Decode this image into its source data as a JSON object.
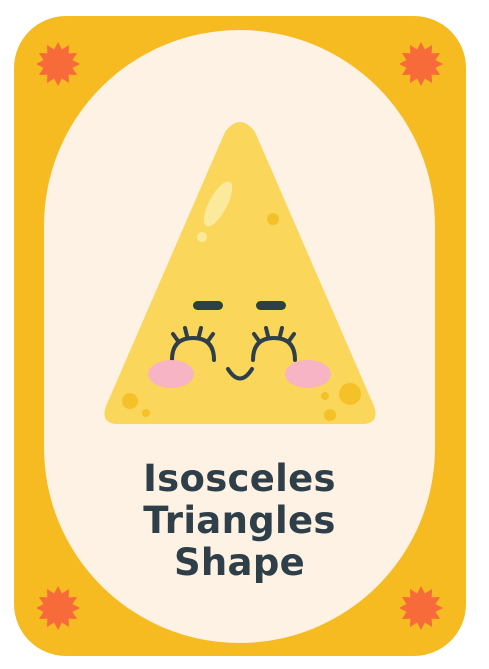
{
  "caption": {
    "line1": "Isosceles",
    "line2": "Triangles",
    "line3": "Shape"
  },
  "icons": {
    "corner_decoration": "starburst-icon",
    "character": "smiling-triangle-character"
  },
  "colors": {
    "card_border": "#f5bb21",
    "card_inner": "#fdf2e3",
    "starburst": "#f76b3a",
    "triangle": "#fad65a",
    "triangle_accent": "#f4c128",
    "blush": "#f7b4c4",
    "face_lines": "#2f3f4a",
    "caption_text": "#2f3f4a"
  }
}
